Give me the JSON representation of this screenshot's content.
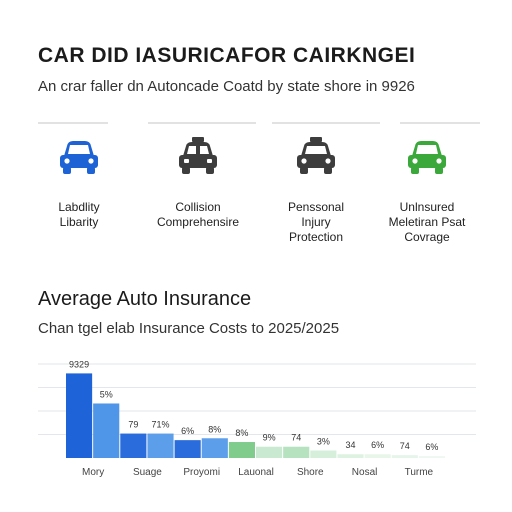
{
  "header": {
    "title": "CAR DID IASURICAFOR CAIRKNGEI",
    "subtitle": "An crar faller dn Autoncade Coatd by state shore in 9926"
  },
  "coverage": [
    {
      "label": "Labdlity\nLibarity",
      "icon": "car-front-icon",
      "color": "#1e63d6"
    },
    {
      "label": "Collision\nComprehensire",
      "icon": "taxi-front-icon",
      "color": "#3d3d3d"
    },
    {
      "label": "Penssonal\nInjury\nProtection",
      "icon": "taxi-front-icon",
      "color": "#3d3d3d"
    },
    {
      "label": "Unlnsured\nMeletiran Psat\nCovrage",
      "icon": "car-front-icon",
      "color": "#3aa83a"
    }
  ],
  "chart": {
    "title": "Average Auto Insurance",
    "subtitle": "Chan tgel elab Insurance Costs to 2025/2025"
  },
  "chart_data": {
    "type": "bar",
    "ylim": [
      0,
      100
    ],
    "grid": true,
    "bars": [
      {
        "value": 90,
        "label": "9329",
        "color": "#1f63d9"
      },
      {
        "value": 58,
        "label": "5%",
        "color": "#4f95e8"
      },
      {
        "value": 26,
        "label": "79",
        "color": "#2a6cdc"
      },
      {
        "value": 26,
        "label": "71%",
        "color": "#5c9ee9"
      },
      {
        "value": 19,
        "label": "6%",
        "color": "#2a6cdc"
      },
      {
        "value": 21,
        "label": "8%",
        "color": "#5c9ee9"
      },
      {
        "value": 17,
        "label": "8%",
        "color": "#7fcc8d"
      },
      {
        "value": 12,
        "label": "9%",
        "color": "#c9ead0"
      },
      {
        "value": 12,
        "label": "74",
        "color": "#b7e2c0"
      },
      {
        "value": 8,
        "label": "3%",
        "color": "#d6efda"
      },
      {
        "value": 4,
        "label": "34",
        "color": "#ddf2e0"
      },
      {
        "value": 4,
        "label": "6%",
        "color": "#e8f6ea"
      },
      {
        "value": 3,
        "label": "74",
        "color": "#e6f5e9"
      },
      {
        "value": 2,
        "label": "6%",
        "color": "#eef8f0"
      }
    ],
    "tick_labels": [
      "Mory",
      "Suage",
      "Proyomi",
      "Lauonal",
      "Shore",
      "Nosal",
      "Turme"
    ]
  }
}
